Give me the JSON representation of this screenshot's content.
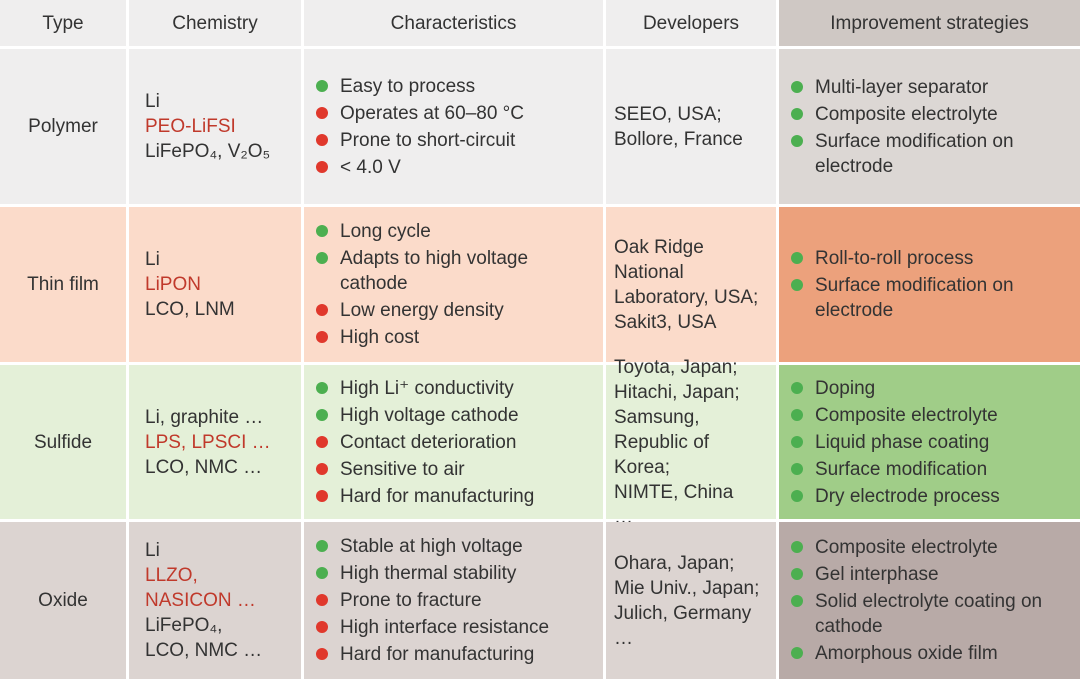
{
  "table": {
    "header": [
      "Type",
      "Chemistry",
      "Characteristics",
      "Developers",
      "Improvement strategies"
    ],
    "header_colors": [
      "#efeeee",
      "#efeeee",
      "#efeeee",
      "#efeeee",
      "#cfc8c4"
    ],
    "rows": [
      {
        "type": "Polymer",
        "bg": "#efeeee",
        "strategy_bg": "#dcd7d4",
        "chemistry": [
          {
            "text": "Li",
            "color": "#333333"
          },
          {
            "text": "PEO-LiFSI",
            "color": "#c0392b"
          },
          {
            "text": "LiFePO₄, V₂O₅",
            "color": "#333333"
          }
        ],
        "characteristics": [
          {
            "text": "Easy to process",
            "color": "#4caf50"
          },
          {
            "text": "Operates at 60–80 °C",
            "color": "#e0382c"
          },
          {
            "text": "Prone to short-circuit",
            "color": "#e0382c"
          },
          {
            "text": "< 4.0 V",
            "color": "#e0382c"
          }
        ],
        "developers": [
          "SEEO, USA;",
          "Bollore, France"
        ],
        "strategies": [
          "Multi-layer separator",
          "Composite electrolyte",
          "Surface modification on electrode"
        ]
      },
      {
        "type": "Thin film",
        "bg": "#fbdbca",
        "strategy_bg": "#eca17c",
        "chemistry": [
          {
            "text": "Li",
            "color": "#333333"
          },
          {
            "text": "LiPON",
            "color": "#c0392b"
          },
          {
            "text": "LCO, LNM",
            "color": "#333333"
          }
        ],
        "characteristics": [
          {
            "text": "Long cycle",
            "color": "#4caf50"
          },
          {
            "text": "Adapts to high voltage cathode",
            "color": "#4caf50"
          },
          {
            "text": "Low energy density",
            "color": "#e0382c"
          },
          {
            "text": "High cost",
            "color": "#e0382c"
          }
        ],
        "developers": [
          "Oak Ridge",
          "National",
          "Laboratory, USA;",
          "Sakit3, USA"
        ],
        "strategies": [
          "Roll-to-roll process",
          "Surface modification on electrode"
        ]
      },
      {
        "type": "Sulfide",
        "bg": "#e4f0d8",
        "strategy_bg": "#a0cd88",
        "chemistry": [
          {
            "text": "Li, graphite …",
            "color": "#333333"
          },
          {
            "text": "LPS, LPSCI …",
            "color": "#c0392b"
          },
          {
            "text": "LCO, NMC …",
            "color": "#333333"
          }
        ],
        "characteristics": [
          {
            "text": "High Li⁺ conductivity",
            "color": "#4caf50"
          },
          {
            "text": "High voltage cathode",
            "color": "#4caf50"
          },
          {
            "text": "Contact deterioration",
            "color": "#e0382c"
          },
          {
            "text": "Sensitive to air",
            "color": "#e0382c"
          },
          {
            "text": "Hard for manufacturing",
            "color": "#e0382c"
          }
        ],
        "developers": [
          "Toyota, Japan;",
          "Hitachi, Japan;",
          "Samsung,",
          "Republic of Korea;",
          "NIMTE, China",
          "…"
        ],
        "strategies": [
          "Doping",
          "Composite electrolyte",
          "Liquid phase coating",
          "Surface modification",
          "Dry electrode process"
        ]
      },
      {
        "type": "Oxide",
        "bg": "#dcd4d1",
        "strategy_bg": "#b8aaa7",
        "chemistry": [
          {
            "text": "Li",
            "color": "#333333"
          },
          {
            "text": "LLZO,",
            "color": "#c0392b"
          },
          {
            "text": "NASICON …",
            "color": "#c0392b"
          },
          {
            "text": "LiFePO₄,",
            "color": "#333333"
          },
          {
            "text": "LCO, NMC …",
            "color": "#333333"
          }
        ],
        "characteristics": [
          {
            "text": "Stable at high voltage",
            "color": "#4caf50"
          },
          {
            "text": "High thermal stability",
            "color": "#4caf50"
          },
          {
            "text": "Prone to fracture",
            "color": "#e0382c"
          },
          {
            "text": "High interface resistance",
            "color": "#e0382c"
          },
          {
            "text": "Hard for manufacturing",
            "color": "#e0382c"
          }
        ],
        "developers": [
          "Ohara, Japan;",
          "Mie Univ., Japan;",
          "Julich, Germany",
          "…"
        ],
        "strategies": [
          "Composite electrolyte",
          "Gel interphase",
          "Solid electrolyte coating on cathode",
          "Amorphous oxide film"
        ]
      }
    ],
    "strategy_bullet": "#4caf50"
  }
}
